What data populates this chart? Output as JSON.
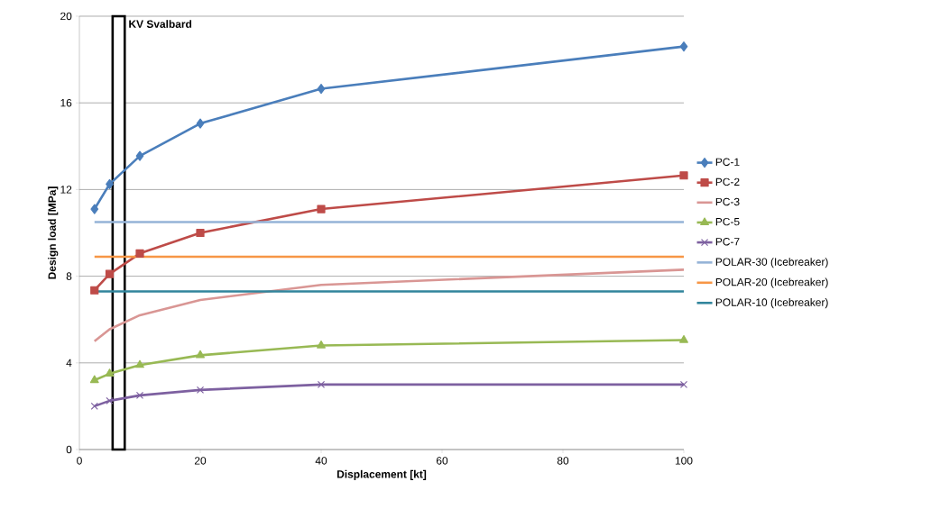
{
  "chart_data": {
    "type": "line",
    "xlabel": "Displacement [kt]",
    "ylabel": "Design load [MPa]",
    "x": [
      2.5,
      5,
      10,
      20,
      40,
      100
    ],
    "series": [
      {
        "name": "PC-1",
        "color": "#4a7ebb",
        "marker": "diamond",
        "values": [
          11.1,
          12.25,
          13.55,
          15.05,
          16.65,
          18.6
        ]
      },
      {
        "name": "PC-2",
        "color": "#be4b48",
        "marker": "square",
        "values": [
          7.35,
          8.1,
          9.05,
          10.0,
          11.1,
          12.65
        ]
      },
      {
        "name": "PC-3",
        "color": "#d99694",
        "marker": "none",
        "values": [
          5.0,
          5.55,
          6.2,
          6.9,
          7.6,
          8.3
        ]
      },
      {
        "name": "PC-5",
        "color": "#98b954",
        "marker": "triangle",
        "values": [
          3.2,
          3.5,
          3.9,
          4.35,
          4.8,
          5.05
        ]
      },
      {
        "name": "PC-7",
        "color": "#7d60a0",
        "marker": "cross",
        "values": [
          2.0,
          2.25,
          2.5,
          2.75,
          3.0,
          3.0
        ]
      },
      {
        "name": "POLAR-30 (Icebreaker)",
        "color": "#95b3d7",
        "marker": "none",
        "values": [
          10.5,
          10.5,
          10.5,
          10.5,
          10.5,
          10.5
        ]
      },
      {
        "name": "POLAR-20 (Icebreaker)",
        "color": "#f79646",
        "marker": "none",
        "values": [
          8.9,
          8.9,
          8.9,
          8.9,
          8.9,
          8.9
        ]
      },
      {
        "name": "POLAR-10 (Icebreaker)",
        "color": "#31859c",
        "marker": "none",
        "values": [
          7.3,
          7.3,
          7.3,
          7.3,
          7.3,
          7.3
        ]
      }
    ],
    "bands": [
      {
        "axis": "x",
        "from": 5.5,
        "to": 7.5,
        "label": "KV Svalbard",
        "color": "#000000"
      }
    ],
    "xlim": [
      0,
      100
    ],
    "ylim": [
      0,
      20
    ],
    "xticks": [
      0,
      20,
      40,
      60,
      80,
      100
    ],
    "yticks": [
      0,
      4,
      8,
      12,
      16,
      20
    ],
    "grid": "y",
    "legend": "right"
  }
}
